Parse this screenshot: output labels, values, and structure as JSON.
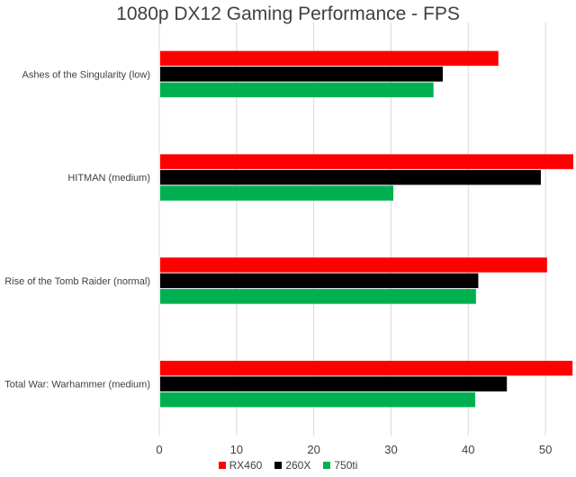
{
  "chart_data": {
    "type": "bar",
    "orientation": "horizontal",
    "title": "1080p DX12 Gaming Performance - FPS",
    "categories": [
      "Ashes of the Singularity (low)",
      "HITMAN (medium)",
      "Rise of the Tomb Raider (normal)",
      "Total War: Warhammer (medium)"
    ],
    "series": [
      {
        "name": "RX460",
        "color": "#ff0000",
        "values": [
          43.9,
          53.6,
          50.2,
          53.5
        ]
      },
      {
        "name": "260X",
        "color": "#000000",
        "values": [
          36.7,
          49.4,
          41.3,
          45.0
        ]
      },
      {
        "name": "750ti",
        "color": "#00b050",
        "values": [
          35.5,
          30.3,
          41.0,
          40.9
        ]
      }
    ],
    "xlim": [
      0,
      53.6
    ],
    "xticks": [
      "0",
      "10",
      "20",
      "30",
      "40",
      "50"
    ],
    "grid": true,
    "legend_position": "bottom"
  }
}
